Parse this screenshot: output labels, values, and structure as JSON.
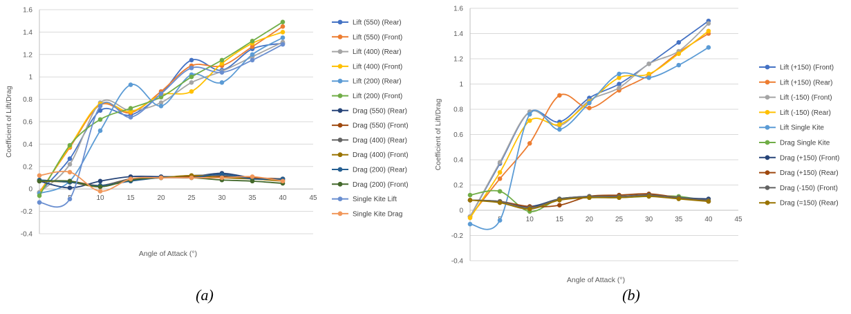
{
  "chart_data": [
    {
      "type": "line",
      "caption": "(a)",
      "xlabel": "Angle of Attack (°)",
      "ylabel": "Coefficient of Lift/Drag",
      "xlim": [
        0,
        45
      ],
      "ylim": [
        -0.4,
        1.6
      ],
      "x_ticks": [
        "5",
        "10",
        "15",
        "20",
        "25",
        "30",
        "35",
        "40",
        "45"
      ],
      "y_ticks": [
        "-0.4",
        "-0.2",
        "0",
        "0.2",
        "0.4",
        "0.6",
        "0.8",
        "1",
        "1.2",
        "1.4",
        "1.6"
      ],
      "smooth": true,
      "grid": "horizontal",
      "legend": "right",
      "series": [
        {
          "name": "Lift (550) (Rear)",
          "color": "#4472C4",
          "x": [
            0,
            5,
            10,
            15,
            20,
            25,
            30,
            35,
            40
          ],
          "y": [
            -0.03,
            0.27,
            0.7,
            0.66,
            0.85,
            1.15,
            1.06,
            1.25,
            1.3
          ]
        },
        {
          "name": "Lift (550) (Front)",
          "color": "#ED7D31",
          "x": [
            0,
            5,
            10,
            15,
            20,
            25,
            30,
            35,
            40
          ],
          "y": [
            -0.03,
            0.37,
            0.75,
            0.68,
            0.87,
            1.1,
            1.1,
            1.27,
            1.45
          ]
        },
        {
          "name": "Lift (400) (Rear)",
          "color": "#A5A5A5",
          "x": [
            0,
            5,
            10,
            15,
            20,
            25,
            30,
            35,
            40
          ],
          "y": [
            -0.03,
            0.22,
            0.77,
            0.7,
            0.77,
            0.95,
            1.05,
            1.18,
            1.31
          ]
        },
        {
          "name": "Lift (400) (Front)",
          "color": "#FFC000",
          "x": [
            0,
            5,
            10,
            15,
            20,
            25,
            30,
            35,
            40
          ],
          "y": [
            -0.04,
            0.38,
            0.76,
            0.69,
            0.84,
            0.87,
            1.12,
            1.3,
            1.4
          ]
        },
        {
          "name": "Lift (200) (Rear)",
          "color": "#5B9BD5",
          "x": [
            0,
            5,
            10,
            15,
            20,
            25,
            30,
            35,
            40
          ],
          "y": [
            -0.04,
            0.07,
            0.52,
            0.93,
            0.74,
            1.02,
            0.95,
            1.2,
            1.35
          ]
        },
        {
          "name": "Lift (200) (Front)",
          "color": "#70AD47",
          "x": [
            0,
            5,
            10,
            15,
            20,
            25,
            30,
            35,
            40
          ],
          "y": [
            -0.06,
            0.39,
            0.62,
            0.72,
            0.82,
            1.0,
            1.15,
            1.32,
            1.49
          ]
        },
        {
          "name": "Drag (550) (Rear)",
          "color": "#264478",
          "x": [
            0,
            5,
            10,
            15,
            20,
            25,
            30,
            35,
            40
          ],
          "y": [
            0.07,
            0.01,
            0.07,
            0.11,
            0.11,
            0.11,
            0.14,
            0.1,
            0.09
          ]
        },
        {
          "name": "Drag (550) (Front)",
          "color": "#9E480E",
          "x": [
            0,
            5,
            10,
            15,
            20,
            25,
            30,
            35,
            40
          ],
          "y": [
            0.07,
            0.07,
            0.03,
            0.09,
            0.1,
            0.11,
            0.11,
            0.1,
            0.09
          ]
        },
        {
          "name": "Drag (400) (Rear)",
          "color": "#636363",
          "x": [
            0,
            5,
            10,
            15,
            20,
            25,
            30,
            35,
            40
          ],
          "y": [
            0.08,
            0.06,
            0.03,
            0.09,
            0.1,
            0.12,
            0.12,
            0.09,
            0.08
          ]
        },
        {
          "name": "Drag (400) (Front)",
          "color": "#997300",
          "x": [
            0,
            5,
            10,
            15,
            20,
            25,
            30,
            35,
            40
          ],
          "y": [
            0.07,
            0.06,
            0.02,
            0.08,
            0.1,
            0.12,
            0.1,
            0.09,
            0.07
          ]
        },
        {
          "name": "Drag (200) (Rear)",
          "color": "#255E91",
          "x": [
            0,
            5,
            10,
            15,
            20,
            25,
            30,
            35,
            40
          ],
          "y": [
            0.08,
            0.06,
            0.03,
            0.07,
            0.1,
            0.1,
            0.13,
            0.09,
            0.09
          ]
        },
        {
          "name": "Drag (200) (Front)",
          "color": "#43682B",
          "x": [
            0,
            5,
            10,
            15,
            20,
            25,
            30,
            35,
            40
          ],
          "y": [
            0.07,
            0.07,
            0.02,
            0.08,
            0.1,
            0.1,
            0.08,
            0.07,
            0.05
          ]
        },
        {
          "name": "Single Kite Lift",
          "color": "#698ED0",
          "x": [
            0,
            5,
            10,
            15,
            20,
            25,
            30,
            35,
            40
          ],
          "y": [
            -0.12,
            -0.09,
            0.74,
            0.64,
            0.85,
            1.08,
            1.04,
            1.15,
            1.29
          ]
        },
        {
          "name": "Single Kite Drag",
          "color": "#F1975A",
          "x": [
            0,
            5,
            10,
            15,
            20,
            25,
            30,
            35,
            40
          ],
          "y": [
            0.12,
            0.15,
            -0.02,
            0.09,
            0.1,
            0.1,
            0.1,
            0.11,
            0.07
          ]
        }
      ]
    },
    {
      "type": "line",
      "caption": "(b)",
      "xlabel": "Angle of Attack (°)",
      "ylabel": "Coefficient of Lift/Drag",
      "xlim": [
        0,
        45
      ],
      "ylim": [
        -0.4,
        1.6
      ],
      "x_ticks": [
        "5",
        "10",
        "15",
        "20",
        "25",
        "30",
        "35",
        "40",
        "45"
      ],
      "y_ticks": [
        "-0.4",
        "-0.2",
        "0",
        "0.2",
        "0.4",
        "0.6",
        "0.8",
        "1",
        "1.2",
        "1.4",
        "1.6"
      ],
      "smooth": true,
      "grid": "horizontal",
      "legend": "right",
      "series": [
        {
          "name": "Lift (+150) (Front)",
          "color": "#4472C4",
          "x": [
            0,
            5,
            10,
            15,
            20,
            25,
            30,
            35,
            40
          ],
          "y": [
            -0.05,
            0.37,
            0.78,
            0.7,
            0.89,
            1.0,
            1.16,
            1.33,
            1.5
          ]
        },
        {
          "name": "Lift (+150) (Rear)",
          "color": "#ED7D31",
          "x": [
            0,
            5,
            10,
            15,
            20,
            25,
            30,
            35,
            40
          ],
          "y": [
            -0.05,
            0.25,
            0.53,
            0.91,
            0.81,
            0.95,
            1.07,
            1.25,
            1.4
          ]
        },
        {
          "name": "Lift (-150) (Front)",
          "color": "#A5A5A5",
          "x": [
            0,
            5,
            10,
            15,
            20,
            25,
            30,
            35,
            40
          ],
          "y": [
            -0.05,
            0.38,
            0.78,
            0.67,
            0.87,
            0.97,
            1.16,
            1.26,
            1.48
          ]
        },
        {
          "name": "Lift (-150) (Rear)",
          "color": "#FFC000",
          "x": [
            0,
            5,
            10,
            15,
            20,
            25,
            30,
            35,
            40
          ],
          "y": [
            -0.06,
            0.3,
            0.71,
            0.68,
            0.86,
            1.05,
            1.08,
            1.24,
            1.42
          ]
        },
        {
          "name": "Lift Single Kite",
          "color": "#5B9BD5",
          "x": [
            0,
            5,
            10,
            15,
            20,
            25,
            30,
            35,
            40
          ],
          "y": [
            -0.11,
            -0.08,
            0.76,
            0.64,
            0.85,
            1.08,
            1.05,
            1.15,
            1.29
          ]
        },
        {
          "name": "Drag Single Kite",
          "color": "#70AD47",
          "x": [
            0,
            5,
            10,
            15,
            20,
            25,
            30,
            35,
            40
          ],
          "y": [
            0.12,
            0.15,
            -0.01,
            0.09,
            0.1,
            0.1,
            0.11,
            0.11,
            0.07
          ]
        },
        {
          "name": "Drag (+150) (Front)",
          "color": "#264478",
          "x": [
            0,
            5,
            10,
            15,
            20,
            25,
            30,
            35,
            40
          ],
          "y": [
            0.08,
            0.07,
            0.03,
            0.09,
            0.11,
            0.11,
            0.12,
            0.1,
            0.09
          ]
        },
        {
          "name": "Drag (+150) (Rear)",
          "color": "#9E480E",
          "x": [
            0,
            5,
            10,
            15,
            20,
            25,
            30,
            35,
            40
          ],
          "y": [
            0.08,
            0.07,
            0.03,
            0.04,
            0.11,
            0.12,
            0.13,
            0.1,
            0.07
          ]
        },
        {
          "name": "Drag (-150) (Front)",
          "color": "#636363",
          "x": [
            0,
            5,
            10,
            15,
            20,
            25,
            30,
            35,
            40
          ],
          "y": [
            0.08,
            0.07,
            0.02,
            0.09,
            0.11,
            0.11,
            0.12,
            0.1,
            0.08
          ]
        },
        {
          "name": "Drag (=150) (Rear)",
          "color": "#997300",
          "x": [
            0,
            5,
            10,
            15,
            20,
            25,
            30,
            35,
            40
          ],
          "y": [
            0.08,
            0.06,
            0.01,
            0.08,
            0.1,
            0.1,
            0.11,
            0.09,
            0.07
          ]
        }
      ]
    }
  ]
}
